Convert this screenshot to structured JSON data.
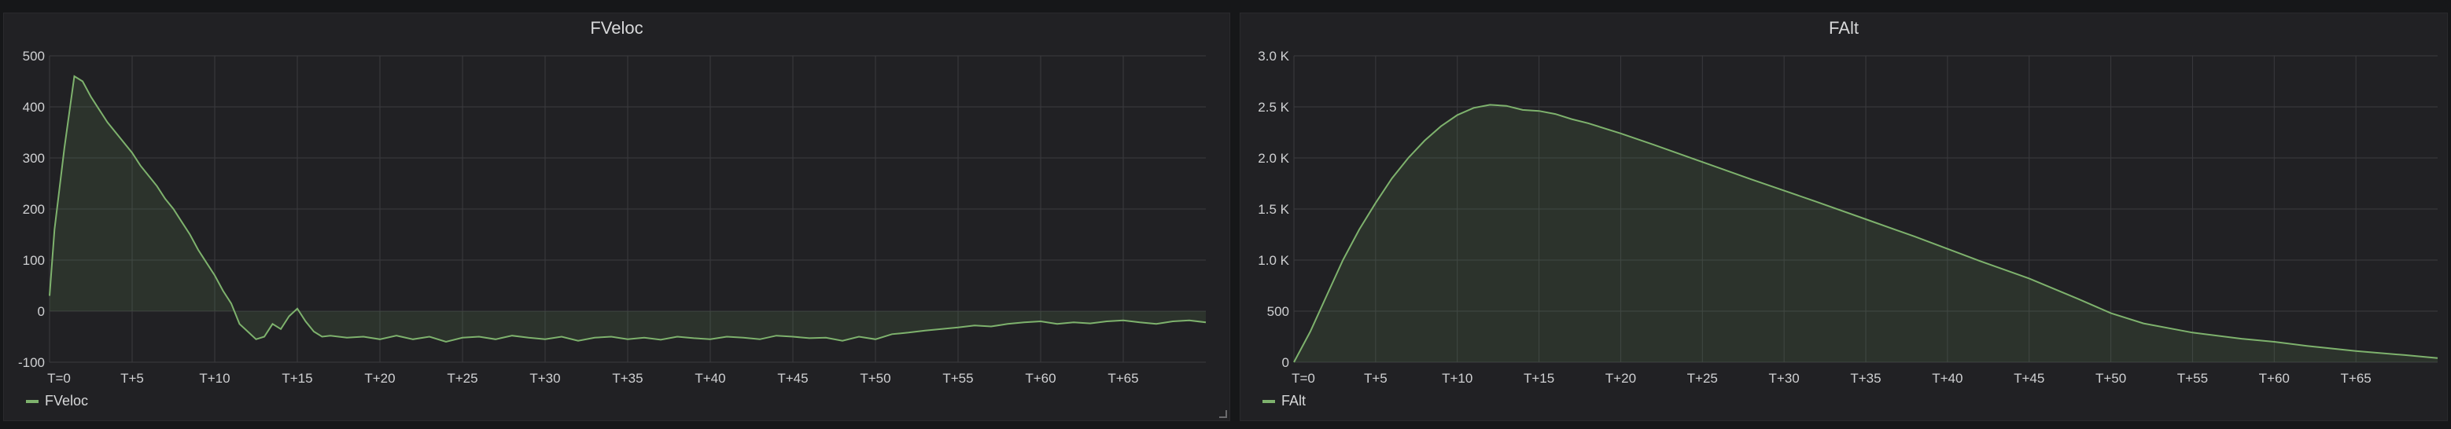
{
  "panels": [
    {
      "title": "FVeloc",
      "legend": "FVeloc",
      "color": "#7eb26d"
    },
    {
      "title": "FAlt",
      "legend": "FAlt",
      "color": "#7eb26d"
    }
  ],
  "chart_data": [
    {
      "type": "area",
      "title": "FVeloc",
      "xlabel": "",
      "ylabel": "",
      "x_unit": "seconds after T=0",
      "xlim": [
        0,
        70
      ],
      "ylim": [
        -100,
        500
      ],
      "x_ticks": [
        "T=0",
        "T+5",
        "T+10",
        "T+15",
        "T+20",
        "T+25",
        "T+30",
        "T+35",
        "T+40",
        "T+45",
        "T+50",
        "T+55",
        "T+60",
        "T+65"
      ],
      "y_ticks": [
        "500",
        "400",
        "300",
        "200",
        "100",
        "0",
        "-100"
      ],
      "y_tick_values": [
        500,
        400,
        300,
        200,
        100,
        0,
        -100
      ],
      "grid": true,
      "legend_position": "bottom-left",
      "series": [
        {
          "name": "FVeloc",
          "x": [
            0,
            0.3,
            0.6,
            0.9,
            1.2,
            1.5,
            2,
            2.5,
            3,
            3.5,
            4,
            4.5,
            5,
            5.5,
            6,
            6.5,
            7,
            7.5,
            8,
            8.5,
            9,
            9.5,
            10,
            10.5,
            11,
            11.5,
            12,
            12.5,
            13,
            13.5,
            14,
            14.5,
            15,
            15.5,
            16,
            16.5,
            17,
            18,
            19,
            20,
            21,
            22,
            23,
            24,
            25,
            26,
            27,
            28,
            29,
            30,
            31,
            32,
            33,
            34,
            35,
            36,
            37,
            38,
            39,
            40,
            41,
            42,
            43,
            44,
            45,
            46,
            47,
            48,
            49,
            50,
            51,
            52,
            53,
            54,
            55,
            56,
            57,
            58,
            59,
            60,
            61,
            62,
            63,
            64,
            65,
            66,
            67,
            68,
            69,
            70
          ],
          "y": [
            30,
            160,
            240,
            320,
            390,
            460,
            450,
            420,
            395,
            370,
            350,
            330,
            310,
            285,
            265,
            245,
            220,
            200,
            175,
            150,
            120,
            95,
            70,
            40,
            15,
            -25,
            -40,
            -55,
            -50,
            -25,
            -35,
            -10,
            5,
            -20,
            -40,
            -50,
            -48,
            -52,
            -50,
            -55,
            -48,
            -55,
            -50,
            -60,
            -52,
            -50,
            -55,
            -48,
            -52,
            -55,
            -50,
            -58,
            -52,
            -50,
            -55,
            -52,
            -56,
            -50,
            -53,
            -55,
            -50,
            -52,
            -55,
            -48,
            -50,
            -53,
            -52,
            -58,
            -50,
            -55,
            -45,
            -42,
            -38,
            -35,
            -32,
            -28,
            -30,
            -25,
            -22,
            -20,
            -25,
            -22,
            -24,
            -20,
            -18,
            -22,
            -25,
            -20,
            -18,
            -22
          ]
        }
      ]
    },
    {
      "type": "area",
      "title": "FAlt",
      "xlabel": "",
      "ylabel": "",
      "x_unit": "seconds after T=0",
      "xlim": [
        0,
        70
      ],
      "ylim": [
        0,
        3000
      ],
      "x_ticks": [
        "T=0",
        "T+5",
        "T+10",
        "T+15",
        "T+20",
        "T+25",
        "T+30",
        "T+35",
        "T+40",
        "T+45",
        "T+50",
        "T+55",
        "T+60",
        "T+65"
      ],
      "y_ticks": [
        "3.0 K",
        "2.5 K",
        "2.0 K",
        "1.5 K",
        "1.0 K",
        "500",
        "0"
      ],
      "y_tick_values": [
        3000,
        2500,
        2000,
        1500,
        1000,
        500,
        0
      ],
      "grid": true,
      "legend_position": "bottom-left",
      "series": [
        {
          "name": "FAlt",
          "x": [
            0,
            1,
            2,
            3,
            4,
            5,
            6,
            7,
            8,
            9,
            10,
            11,
            12,
            13,
            14,
            15,
            16,
            17,
            18,
            20,
            22,
            25,
            28,
            30,
            32,
            35,
            38,
            40,
            42,
            45,
            48,
            50,
            52,
            55,
            58,
            60,
            62,
            65,
            68,
            70
          ],
          "y": [
            0,
            300,
            650,
            1000,
            1300,
            1560,
            1800,
            2000,
            2170,
            2310,
            2420,
            2490,
            2520,
            2510,
            2470,
            2460,
            2430,
            2380,
            2340,
            2240,
            2130,
            1960,
            1790,
            1680,
            1570,
            1400,
            1230,
            1110,
            990,
            820,
            620,
            480,
            380,
            290,
            230,
            200,
            160,
            110,
            70,
            40
          ]
        }
      ]
    }
  ]
}
